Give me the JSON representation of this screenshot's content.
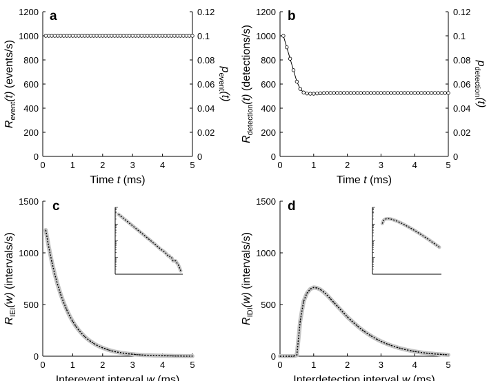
{
  "chart_data": [
    {
      "type": "line",
      "panel": "a",
      "x": [
        0.1,
        0.2,
        0.3,
        0.4,
        0.5,
        0.6,
        0.7,
        0.8,
        0.9,
        1.0,
        1.1,
        1.2,
        1.3,
        1.4,
        1.5,
        1.6,
        1.7,
        1.8,
        1.9,
        2.0,
        2.1,
        2.2,
        2.3,
        2.4,
        2.5,
        2.6,
        2.7,
        2.8,
        2.9,
        3.0,
        3.1,
        3.2,
        3.3,
        3.4,
        3.5,
        3.6,
        3.7,
        3.8,
        3.9,
        4.0,
        4.1,
        4.2,
        4.3,
        4.4,
        4.5,
        4.6,
        4.7,
        4.8,
        4.9,
        5.0
      ],
      "series": [
        {
          "name": "R_event(t)",
          "values": [
            1000,
            1000,
            1000,
            1000,
            1000,
            1000,
            1000,
            1000,
            1000,
            1000,
            1000,
            1000,
            1000,
            1000,
            1000,
            1000,
            1000,
            1000,
            1000,
            1000,
            1000,
            1000,
            1000,
            1000,
            1000,
            1000,
            1000,
            1000,
            1000,
            1000,
            1000,
            1000,
            1000,
            1000,
            1000,
            1000,
            1000,
            1000,
            1000,
            1000,
            1000,
            1000,
            1000,
            1000,
            1000,
            1000,
            1000,
            1000,
            1000,
            1000
          ]
        }
      ],
      "xlim": [
        0,
        5
      ],
      "ylim": [
        0,
        1200
      ],
      "y2lim": [
        0,
        0.12
      ],
      "xticks": [
        "0",
        "1",
        "2",
        "3",
        "4",
        "5"
      ],
      "yticks": [
        "0",
        "200",
        "400",
        "600",
        "800",
        "1000",
        "1200"
      ],
      "y2ticks": [
        "0",
        "0.02",
        "0.04",
        "0.06",
        "0.08",
        "0.1",
        "0.12"
      ],
      "xlabel": {
        "main": "Time ",
        "italic": "t",
        "tail": " (ms)"
      },
      "ylabel": {
        "sym": "R",
        "sub": "event",
        "arg": "(t)",
        "tail": " (events/s)"
      },
      "y2label": {
        "sym": "p",
        "sub": "event",
        "arg": "(t)"
      }
    },
    {
      "type": "line",
      "panel": "b",
      "x": [
        0.1,
        0.2,
        0.3,
        0.4,
        0.5,
        0.6,
        0.7,
        0.8,
        0.9,
        1.0,
        1.1,
        1.2,
        1.3,
        1.4,
        1.5,
        1.6,
        1.7,
        1.8,
        1.9,
        2.0,
        2.1,
        2.2,
        2.3,
        2.4,
        2.5,
        2.6,
        2.7,
        2.8,
        2.9,
        3.0,
        3.1,
        3.2,
        3.3,
        3.4,
        3.5,
        3.6,
        3.7,
        3.8,
        3.9,
        4.0,
        4.1,
        4.2,
        4.3,
        4.4,
        4.5,
        4.6,
        4.7,
        4.8,
        4.9,
        5.0
      ],
      "series": [
        {
          "name": "R_detection(t)",
          "values": [
            1000,
            905,
            810,
            715,
            620,
            560,
            530,
            522,
            520,
            520,
            522,
            524,
            525,
            526,
            526,
            526,
            526,
            526,
            526,
            526,
            526,
            526,
            526,
            526,
            526,
            526,
            526,
            526,
            526,
            526,
            526,
            526,
            526,
            526,
            526,
            526,
            526,
            526,
            526,
            526,
            526,
            526,
            526,
            526,
            526,
            526,
            526,
            526,
            526,
            526
          ]
        }
      ],
      "xlim": [
        0,
        5
      ],
      "ylim": [
        0,
        1200
      ],
      "y2lim": [
        0,
        0.12
      ],
      "xticks": [
        "0",
        "1",
        "2",
        "3",
        "4",
        "5"
      ],
      "yticks": [
        "0",
        "200",
        "400",
        "600",
        "800",
        "1000",
        "1200"
      ],
      "y2ticks": [
        "0",
        "0.02",
        "0.04",
        "0.06",
        "0.08",
        "0.1",
        "0.12"
      ],
      "xlabel": {
        "main": "Time ",
        "italic": "t",
        "tail": " (ms)"
      },
      "ylabel": {
        "sym": "R",
        "sub": "detection",
        "arg": "(t)",
        "tail": " (detections/s)"
      },
      "y2label": {
        "sym": "p",
        "sub": "detection",
        "arg": "(t)"
      }
    },
    {
      "type": "line",
      "panel": "c",
      "x": [
        0.1,
        0.2,
        0.3,
        0.4,
        0.5,
        0.6,
        0.7,
        0.8,
        0.9,
        1.0,
        1.1,
        1.2,
        1.3,
        1.4,
        1.5,
        1.6,
        1.7,
        1.8,
        1.9,
        2.0,
        2.1,
        2.2,
        2.3,
        2.4,
        2.5,
        2.6,
        2.7,
        2.8,
        2.9,
        3.0,
        3.1,
        3.2,
        3.3,
        3.4,
        3.5,
        3.6,
        3.7,
        3.8,
        3.9,
        4.0,
        4.1,
        4.2,
        4.3,
        4.4,
        4.5,
        4.6,
        4.7,
        4.8,
        4.9,
        5.0
      ],
      "series": [
        {
          "name": "R_IEI(w)",
          "values": [
            1220,
            1058,
            917,
            795,
            689,
            597,
            518,
            449,
            389,
            337,
            292,
            253,
            220,
            190,
            165,
            143,
            124,
            107,
            93,
            81,
            70,
            60,
            52,
            45,
            39,
            34,
            29,
            25,
            22,
            19,
            16,
            14,
            12,
            10,
            9,
            8,
            7,
            6,
            5,
            4,
            4,
            3,
            3,
            2,
            2,
            2,
            1,
            1,
            1,
            1
          ]
        }
      ],
      "xlim": [
        0,
        5
      ],
      "ylim": [
        0,
        1500
      ],
      "xticks": [
        "0",
        "1",
        "2",
        "3",
        "4",
        "5"
      ],
      "yticks": [
        "0",
        "500",
        "1000",
        "1500"
      ],
      "xlabel": {
        "main": "Interevent interval ",
        "italic": "w",
        "tail": " (ms)"
      },
      "ylabel": {
        "sym": "R",
        "sub": "IEI",
        "arg": "(w)",
        "tail": " (intervals/s)"
      },
      "inset": {
        "scale": "log",
        "values": [
          1220,
          1058,
          917,
          795,
          689,
          597,
          518,
          449,
          389,
          337,
          292,
          253,
          220,
          190,
          165,
          143,
          124,
          107,
          93,
          81,
          70,
          60,
          52,
          45,
          39,
          34,
          29,
          25,
          22,
          19,
          16,
          14,
          12,
          10,
          9,
          8,
          7,
          6,
          5,
          4,
          4,
          3,
          3,
          2,
          2,
          2,
          1.5,
          1.2,
          0.8,
          0.5
        ]
      }
    },
    {
      "type": "line",
      "panel": "d",
      "x": [
        0.0,
        0.1,
        0.2,
        0.3,
        0.4,
        0.5,
        0.6,
        0.7,
        0.8,
        0.9,
        1.0,
        1.1,
        1.2,
        1.3,
        1.4,
        1.5,
        1.6,
        1.7,
        1.8,
        1.9,
        2.0,
        2.1,
        2.2,
        2.3,
        2.4,
        2.5,
        2.6,
        2.7,
        2.8,
        2.9,
        3.0,
        3.1,
        3.2,
        3.3,
        3.4,
        3.5,
        3.6,
        3.7,
        3.8,
        3.9,
        4.0,
        4.1,
        4.2,
        4.3,
        4.4,
        4.5,
        4.6,
        4.7,
        4.8,
        4.9,
        5.0
      ],
      "series": [
        {
          "name": "R_IDI(w)",
          "values": [
            0,
            0,
            0,
            0,
            0,
            10,
            340,
            530,
            610,
            650,
            665,
            660,
            645,
            620,
            590,
            555,
            520,
            485,
            450,
            415,
            380,
            350,
            320,
            292,
            265,
            240,
            218,
            197,
            178,
            160,
            144,
            129,
            116,
            104,
            93,
            83,
            74,
            66,
            59,
            52,
            46,
            41,
            36,
            32,
            28,
            25,
            22,
            19,
            17,
            15,
            13
          ]
        }
      ],
      "xlim": [
        0,
        5
      ],
      "ylim": [
        0,
        1500
      ],
      "xticks": [
        "0",
        "1",
        "2",
        "3",
        "4",
        "5"
      ],
      "yticks": [
        "0",
        "500",
        "1000",
        "1500"
      ],
      "xlabel": {
        "main": "Interdetection interval ",
        "italic": "w",
        "tail": " (ms)"
      },
      "ylabel": {
        "sym": "R",
        "sub": "IDI",
        "arg": "(w)",
        "tail": " (intervals/s)"
      },
      "inset": {
        "scale": "log",
        "start_x": 0.6,
        "values": [
          340,
          530,
          610,
          650,
          665,
          660,
          645,
          620,
          590,
          555,
          520,
          485,
          450,
          415,
          380,
          350,
          320,
          292,
          265,
          240,
          218,
          197,
          178,
          160,
          144,
          129,
          116,
          104,
          93,
          83,
          74,
          66,
          59,
          52,
          46,
          41,
          36,
          32,
          28,
          25,
          22,
          19,
          17,
          15,
          13
        ]
      }
    }
  ]
}
